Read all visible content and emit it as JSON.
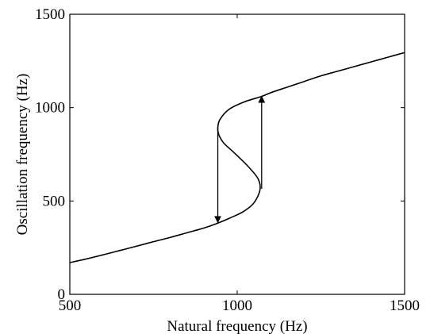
{
  "chart_data": {
    "type": "line",
    "title": "",
    "xlabel": "Natural frequency (Hz)",
    "ylabel": "Oscillation frequency (Hz)",
    "xlim": [
      500,
      1500
    ],
    "ylim": [
      0,
      1500
    ],
    "xticks": [
      500,
      1000,
      1500
    ],
    "yticks": [
      0,
      500,
      1000,
      1500
    ],
    "xtick_labels": [
      "500",
      "1000",
      "1500"
    ],
    "ytick_labels": [
      "0",
      "500",
      "1000",
      "1500"
    ],
    "grid": false,
    "legend": "none",
    "series": [
      {
        "x": [
          500,
          550,
          600,
          650,
          700,
          750,
          800,
          850,
          900,
          940,
          980,
          1020,
          1050,
          1068,
          1062,
          1030,
          990,
          960,
          945,
          942,
          948,
          975,
          1020,
          1073,
          1100,
          1150,
          1200,
          1250,
          1300,
          1350,
          1400,
          1450,
          1500
        ],
        "y": [
          170,
          190,
          212,
          235,
          258,
          282,
          305,
          330,
          355,
          380,
          410,
          445,
          490,
          560,
          620,
          690,
          760,
          810,
          855,
          890,
          935,
          990,
          1030,
          1060,
          1080,
          1110,
          1140,
          1170,
          1195,
          1220,
          1245,
          1270,
          1295
        ]
      }
    ],
    "annotations": [
      {
        "type": "arrow",
        "from": [
          942,
          890
        ],
        "to": [
          942,
          385
        ]
      },
      {
        "type": "arrow",
        "from": [
          1073,
          565
        ],
        "to": [
          1073,
          1060
        ]
      }
    ],
    "colors": {
      "line": "#000000",
      "axes": "#000000",
      "background": "#ffffff"
    }
  }
}
